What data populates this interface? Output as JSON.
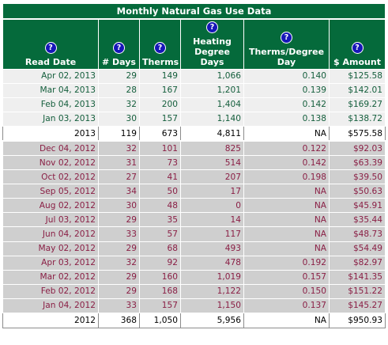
{
  "title": "Monthly Natural Gas Use Data",
  "help_glyph": "?",
  "columns": [
    {
      "label": "Read Date"
    },
    {
      "label": "# Days"
    },
    {
      "label": "Therms"
    },
    {
      "label": "Heating Degree Days"
    },
    {
      "label": "Therms/Degree Day"
    },
    {
      "label": "$ Amount"
    }
  ],
  "rows_2013": [
    {
      "date": "Apr 02, 2013",
      "days": "29",
      "therms": "149",
      "hdd": "1,066",
      "tpd": "0.140",
      "amount": "$125.58"
    },
    {
      "date": "Mar 04, 2013",
      "days": "28",
      "therms": "167",
      "hdd": "1,201",
      "tpd": "0.139",
      "amount": "$142.01"
    },
    {
      "date": "Feb 04, 2013",
      "days": "32",
      "therms": "200",
      "hdd": "1,404",
      "tpd": "0.142",
      "amount": "$169.27"
    },
    {
      "date": "Jan 03, 2013",
      "days": "30",
      "therms": "157",
      "hdd": "1,140",
      "tpd": "0.138",
      "amount": "$138.72"
    }
  ],
  "total_2013": {
    "date": "2013",
    "days": "119",
    "therms": "673",
    "hdd": "4,811",
    "tpd": "NA",
    "amount": "$575.58"
  },
  "rows_2012": [
    {
      "date": "Dec 04, 2012",
      "days": "32",
      "therms": "101",
      "hdd": "825",
      "tpd": "0.122",
      "amount": "$92.03"
    },
    {
      "date": "Nov 02, 2012",
      "days": "31",
      "therms": "73",
      "hdd": "514",
      "tpd": "0.142",
      "amount": "$63.39"
    },
    {
      "date": "Oct 02, 2012",
      "days": "27",
      "therms": "41",
      "hdd": "207",
      "tpd": "0.198",
      "amount": "$39.50"
    },
    {
      "date": "Sep 05, 2012",
      "days": "34",
      "therms": "50",
      "hdd": "17",
      "tpd": "NA",
      "amount": "$50.63"
    },
    {
      "date": "Aug 02, 2012",
      "days": "30",
      "therms": "48",
      "hdd": "0",
      "tpd": "NA",
      "amount": "$45.91"
    },
    {
      "date": "Jul 03, 2012",
      "days": "29",
      "therms": "35",
      "hdd": "14",
      "tpd": "NA",
      "amount": "$35.44"
    },
    {
      "date": "Jun 04, 2012",
      "days": "33",
      "therms": "57",
      "hdd": "117",
      "tpd": "NA",
      "amount": "$48.73"
    },
    {
      "date": "May 02, 2012",
      "days": "29",
      "therms": "68",
      "hdd": "493",
      "tpd": "NA",
      "amount": "$54.49"
    },
    {
      "date": "Apr 03, 2012",
      "days": "32",
      "therms": "92",
      "hdd": "478",
      "tpd": "0.192",
      "amount": "$82.97"
    },
    {
      "date": "Mar 02, 2012",
      "days": "29",
      "therms": "160",
      "hdd": "1,019",
      "tpd": "0.157",
      "amount": "$141.35"
    },
    {
      "date": "Feb 02, 2012",
      "days": "29",
      "therms": "168",
      "hdd": "1,122",
      "tpd": "0.150",
      "amount": "$151.22"
    },
    {
      "date": "Jan 04, 2012",
      "days": "33",
      "therms": "157",
      "hdd": "1,150",
      "tpd": "0.137",
      "amount": "$145.27"
    }
  ],
  "total_2012": {
    "date": "2012",
    "days": "368",
    "therms": "1,050",
    "hdd": "5,956",
    "tpd": "NA",
    "amount": "$950.93"
  },
  "colors": {
    "header_green": "#056a3b",
    "help_blue": "#1616b8",
    "row_2013_text": "#145e3c",
    "row_2012_text": "#8a1f45"
  },
  "icons": {
    "help": "question-mark-circle-icon"
  }
}
